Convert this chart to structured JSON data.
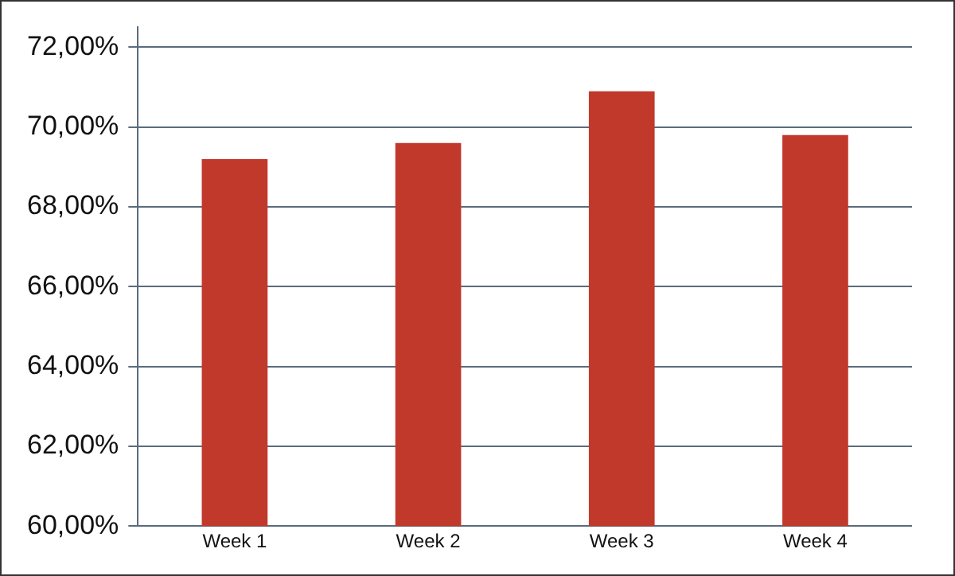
{
  "chart_data": {
    "type": "bar",
    "categories": [
      "Week 1",
      "Week 2",
      "Week 3",
      "Week 4"
    ],
    "values": [
      69.2,
      69.6,
      70.9,
      69.8
    ],
    "color": "#c0392b",
    "ylim": [
      60,
      72.5
    ],
    "yticks": [
      {
        "value": 60,
        "label": "60,00%"
      },
      {
        "value": 62,
        "label": "62,00%"
      },
      {
        "value": 64,
        "label": "64,00%"
      },
      {
        "value": 66,
        "label": "66,00%"
      },
      {
        "value": 68,
        "label": "68,00%"
      },
      {
        "value": 70,
        "label": "70,00%"
      },
      {
        "value": 72,
        "label": "72,00%"
      }
    ],
    "grid": "y",
    "legend": false
  }
}
